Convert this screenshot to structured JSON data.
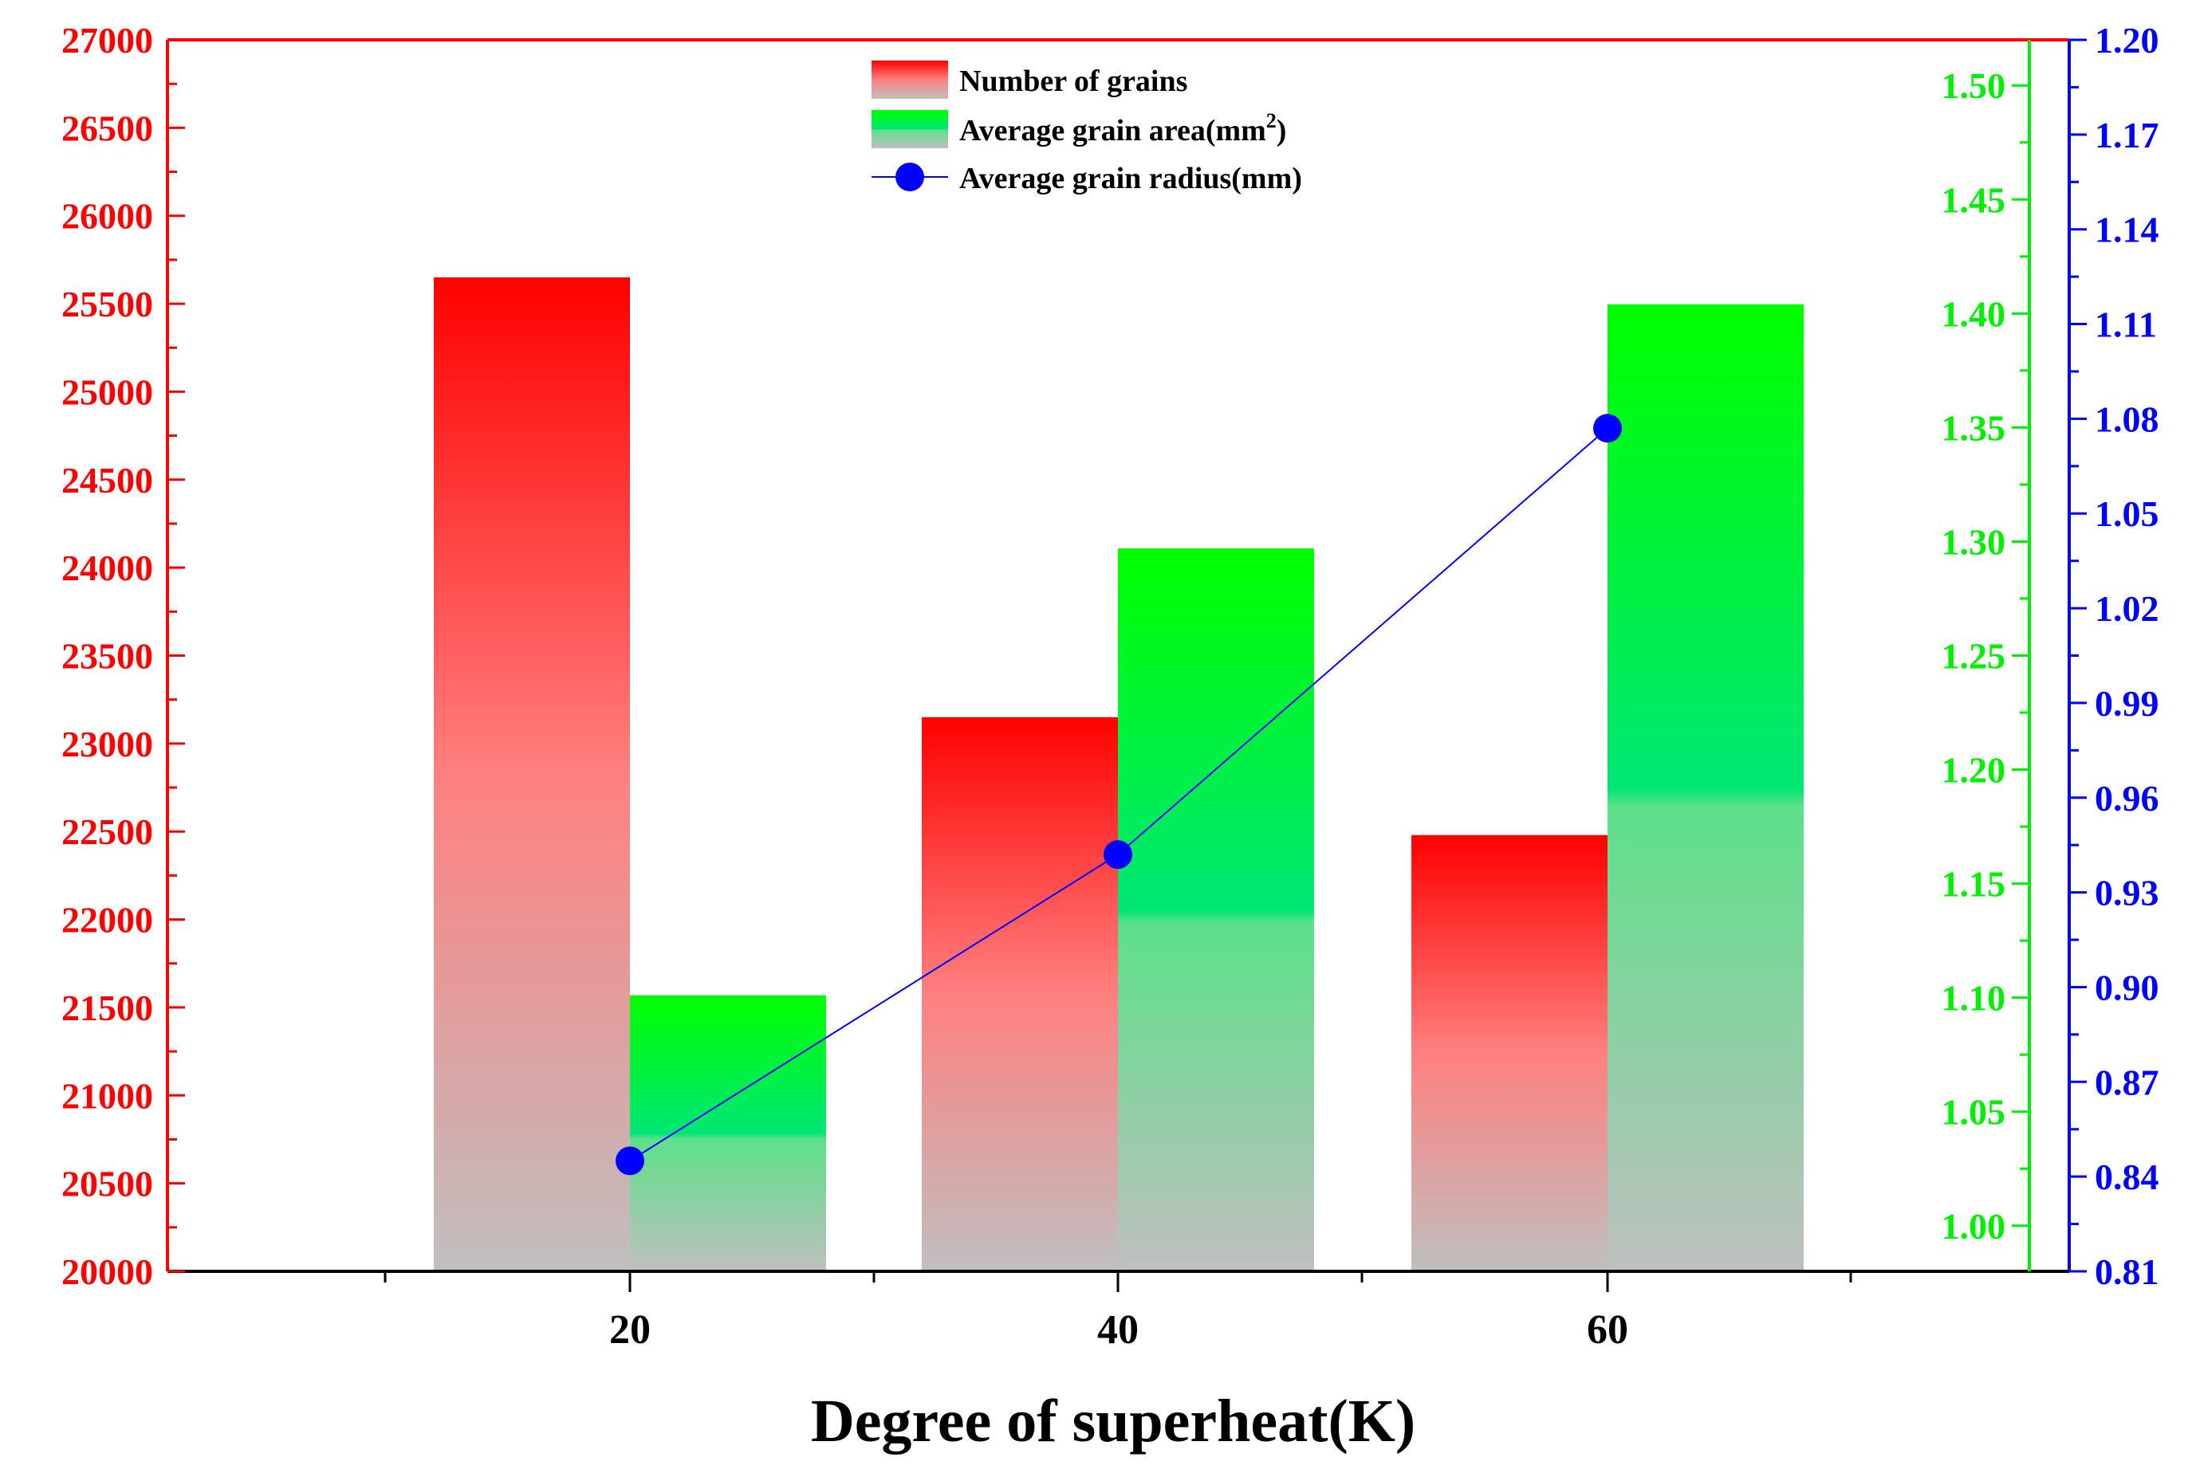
{
  "chart_data": {
    "type": "bar",
    "xlabel": "Degree of superheat(K)",
    "categories": [
      "20",
      "40",
      "60"
    ],
    "series": [
      {
        "name": "Number of grains",
        "kind": "bar",
        "axis": "left",
        "color": "#ff0000",
        "values": [
          25650,
          23150,
          22480
        ]
      },
      {
        "name": "Average grain area(mm",
        "name_superscript": "2",
        "name_suffix": ")",
        "kind": "bar",
        "axis": "right-inner",
        "color": "#00ff00",
        "values": [
          1.101,
          1.297,
          1.404
        ]
      },
      {
        "name": "Average grain radius(mm)",
        "kind": "line",
        "axis": "right-outer",
        "color": "#0000ff",
        "values": [
          0.845,
          0.942,
          1.077
        ]
      }
    ],
    "axes": {
      "left": {
        "color": "#ff0000",
        "ylim": [
          20000,
          27000
        ],
        "ticks": [
          "20000",
          "20500",
          "21000",
          "21500",
          "22000",
          "22500",
          "23000",
          "23500",
          "24000",
          "24500",
          "25000",
          "25500",
          "26000",
          "26500",
          "27000"
        ]
      },
      "right_inner": {
        "color": "#00ee00",
        "ylim": [
          0.98,
          1.52
        ],
        "ticks": [
          "1.00",
          "1.05",
          "1.10",
          "1.15",
          "1.20",
          "1.25",
          "1.30",
          "1.35",
          "1.40",
          "1.45",
          "1.50"
        ]
      },
      "right_outer": {
        "color": "#0000ff",
        "ylim": [
          0.81,
          1.2
        ],
        "ticks": [
          "0.81",
          "0.84",
          "0.87",
          "0.90",
          "0.93",
          "0.96",
          "0.99",
          "1.02",
          "1.05",
          "1.08",
          "1.11",
          "1.14",
          "1.17",
          "1.20"
        ]
      }
    },
    "legend_position": "top-center",
    "grid": false
  }
}
